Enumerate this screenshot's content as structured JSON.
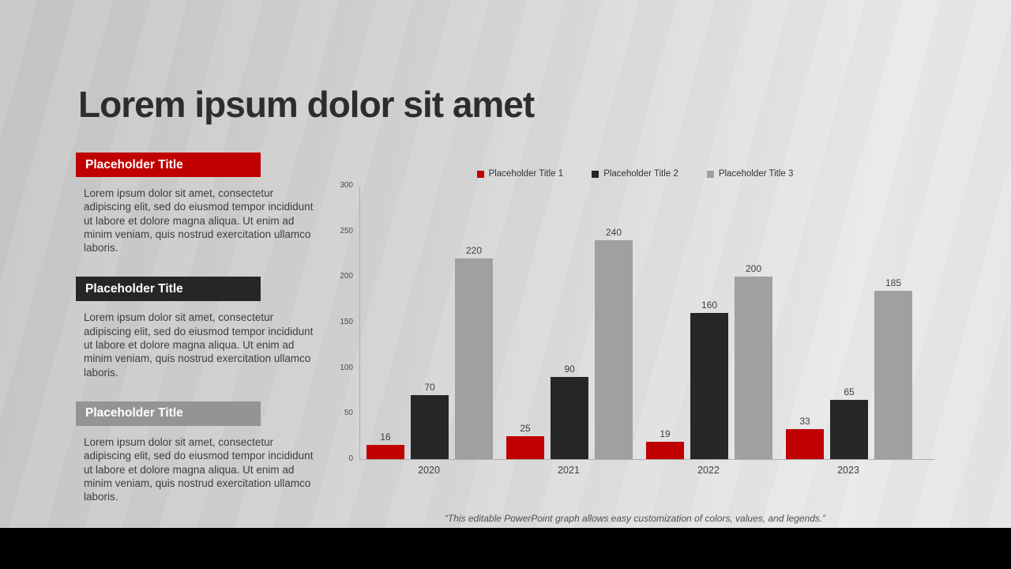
{
  "slide": {
    "title": "Lorem ipsum dolor sit amet",
    "footer_quote": "“This editable PowerPoint graph allows easy customization of colors, values, and legends.”"
  },
  "sections": [
    {
      "title": "Placeholder Title",
      "color": "#c00000",
      "body": "Lorem ipsum dolor sit amet, consectetur adipiscing elit, sed do eiusmod tempor incididunt ut labore et dolore magna aliqua. Ut enim ad minim veniam, quis nostrud exercitation ullamco laboris."
    },
    {
      "title": "Placeholder Title",
      "color": "#262626",
      "body": "Lorem ipsum dolor sit amet, consectetur adipiscing elit, sed do eiusmod tempor incididunt ut labore et dolore magna aliqua. Ut enim ad minim veniam, quis nostrud exercitation ullamco laboris."
    },
    {
      "title": "Placeholder Title",
      "color": "#949494",
      "body": "Lorem ipsum dolor sit amet, consectetur adipiscing elit, sed do eiusmod tempor incididunt ut labore et dolore magna aliqua. Ut enim ad minim veniam, quis nostrud exercitation ullamco laboris."
    }
  ],
  "chart_data": {
    "type": "bar",
    "title": "",
    "categories": [
      "2020",
      "2021",
      "2022",
      "2023"
    ],
    "series": [
      {
        "name": "Placeholder Title 1",
        "color": "#c00000",
        "values": [
          16,
          25,
          19,
          33
        ]
      },
      {
        "name": "Placeholder Title 2",
        "color": "#262626",
        "values": [
          70,
          90,
          160,
          65
        ]
      },
      {
        "name": "Placeholder Title 3",
        "color": "#a0a0a0",
        "values": [
          220,
          240,
          200,
          185
        ]
      }
    ],
    "xlabel": "",
    "ylabel": "",
    "ylim": [
      0,
      300
    ],
    "ytick_step": 50,
    "grid": false,
    "legend_position": "top",
    "data_labels": true
  }
}
